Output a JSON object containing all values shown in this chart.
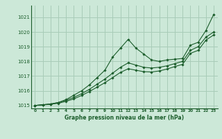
{
  "background_color": "#cce8d8",
  "grid_color": "#a8ccb8",
  "line_color": "#1a5c2a",
  "title": "Graphe pression niveau de la mer (hPa)",
  "xlim": [
    -0.5,
    23.5
  ],
  "ylim": [
    1014.8,
    1021.8
  ],
  "yticks": [
    1015,
    1016,
    1017,
    1018,
    1019,
    1020,
    1021
  ],
  "xtick_labels": [
    "0",
    "1",
    "2",
    "3",
    "4",
    "5",
    "6",
    "7",
    "8",
    "9",
    "10",
    "11",
    "12",
    "13",
    "14",
    "15",
    "16",
    "17",
    "18",
    "19",
    "20",
    "21",
    "22",
    "23"
  ],
  "xticks": [
    0,
    1,
    2,
    3,
    4,
    5,
    6,
    7,
    8,
    9,
    10,
    11,
    12,
    13,
    14,
    15,
    16,
    17,
    18,
    19,
    20,
    21,
    22,
    23
  ],
  "series": [
    {
      "x": [
        0,
        1,
        2,
        3,
        4,
        5,
        6,
        7,
        8,
        9,
        10,
        11,
        12,
        13,
        14,
        15,
        16,
        17,
        18,
        19,
        20,
        21,
        22,
        23
      ],
      "y": [
        1015.0,
        1015.05,
        1015.1,
        1015.2,
        1015.4,
        1015.7,
        1016.0,
        1016.4,
        1016.9,
        1017.4,
        1018.3,
        1018.9,
        1019.5,
        1018.9,
        1018.5,
        1018.1,
        1018.0,
        1018.1,
        1018.15,
        1018.2,
        1019.1,
        1019.3,
        1020.1,
        1021.2
      ]
    },
    {
      "x": [
        0,
        1,
        2,
        3,
        4,
        5,
        6,
        7,
        8,
        9,
        10,
        11,
        12,
        13,
        14,
        15,
        16,
        17,
        18,
        19,
        20,
        21,
        22,
        23
      ],
      "y": [
        1015.0,
        1015.05,
        1015.1,
        1015.2,
        1015.35,
        1015.55,
        1015.8,
        1016.1,
        1016.45,
        1016.8,
        1017.2,
        1017.6,
        1017.9,
        1017.75,
        1017.6,
        1017.55,
        1017.6,
        1017.7,
        1017.85,
        1018.0,
        1018.75,
        1019.0,
        1019.65,
        1020.0
      ]
    },
    {
      "x": [
        0,
        1,
        2,
        3,
        4,
        5,
        6,
        7,
        8,
        9,
        10,
        11,
        12,
        13,
        14,
        15,
        16,
        17,
        18,
        19,
        20,
        21,
        22,
        23
      ],
      "y": [
        1015.0,
        1015.04,
        1015.08,
        1015.15,
        1015.28,
        1015.45,
        1015.68,
        1015.95,
        1016.25,
        1016.55,
        1016.9,
        1017.25,
        1017.5,
        1017.4,
        1017.3,
        1017.28,
        1017.35,
        1017.48,
        1017.65,
        1017.8,
        1018.55,
        1018.75,
        1019.45,
        1019.8
      ]
    }
  ]
}
